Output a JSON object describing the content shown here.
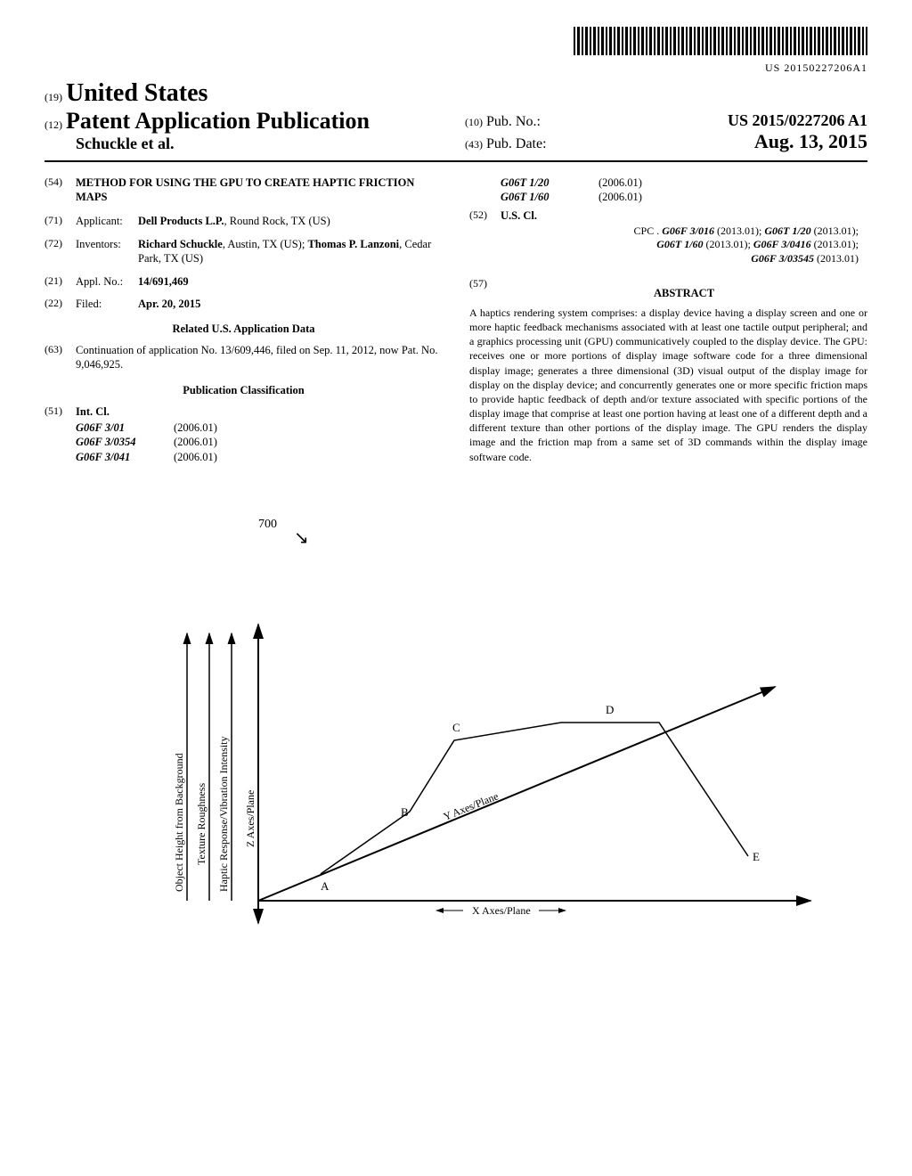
{
  "barcode_text": "US 20150227206A1",
  "header": {
    "country_prefix": "(19)",
    "country": "United States",
    "pub_type_prefix": "(12)",
    "pub_type": "Patent Application Publication",
    "authors": "Schuckle et al.",
    "pub_no_prefix": "(10)",
    "pub_no_label": "Pub. No.:",
    "pub_no": "US 2015/0227206 A1",
    "pub_date_prefix": "(43)",
    "pub_date_label": "Pub. Date:",
    "pub_date": "Aug. 13, 2015"
  },
  "left_col": {
    "title_num": "(54)",
    "title": "METHOD FOR USING THE GPU TO CREATE HAPTIC FRICTION MAPS",
    "applicant_num": "(71)",
    "applicant_label": "Applicant:",
    "applicant": "Dell Products L.P.",
    "applicant_loc": ", Round Rock, TX (US)",
    "inventors_num": "(72)",
    "inventors_label": "Inventors:",
    "inventor1": "Richard Schuckle",
    "inventor1_loc": ", Austin, TX (US);",
    "inventor2": "Thomas P. Lanzoni",
    "inventor2_loc": ", Cedar Park, TX (US)",
    "appl_num": "(21)",
    "appl_label": "Appl. No.:",
    "appl_val": "14/691,469",
    "filed_num": "(22)",
    "filed_label": "Filed:",
    "filed_val": "Apr. 20, 2015",
    "related_header": "Related U.S. Application Data",
    "continuation_num": "(63)",
    "continuation": "Continuation of application No. 13/609,446, filed on Sep. 11, 2012, now Pat. No. 9,046,925.",
    "classification_header": "Publication Classification",
    "intcl_num": "(51)",
    "intcl_label": "Int. Cl.",
    "intcl": [
      {
        "code": "G06F 3/01",
        "ver": "(2006.01)"
      },
      {
        "code": "G06F 3/0354",
        "ver": "(2006.01)"
      },
      {
        "code": "G06F 3/041",
        "ver": "(2006.01)"
      }
    ]
  },
  "right_col": {
    "intcl_cont": [
      {
        "code": "G06T 1/20",
        "ver": "(2006.01)"
      },
      {
        "code": "G06T 1/60",
        "ver": "(2006.01)"
      }
    ],
    "uscl_num": "(52)",
    "uscl_label": "U.S. Cl.",
    "cpc_prefix": "CPC .",
    "cpc_lines": [
      [
        {
          "b": "G06F 3/016",
          "t": " (2013.01); "
        },
        {
          "b": "G06T 1/20",
          "t": " (2013.01);"
        }
      ],
      [
        {
          "b": "G06T 1/60",
          "t": " (2013.01); "
        },
        {
          "b": "G06F 3/0416",
          "t": " (2013.01);"
        }
      ],
      [
        {
          "b": "G06F 3/03545",
          "t": " (2013.01)"
        }
      ]
    ],
    "abstract_num": "(57)",
    "abstract_label": "ABSTRACT",
    "abstract": "A haptics rendering system comprises: a display device having a display screen and one or more haptic feedback mechanisms associated with at least one tactile output peripheral; and a graphics processing unit (GPU) communicatively coupled to the display device. The GPU: receives one or more portions of display image software code for a three dimensional display image; generates a three dimensional (3D) visual output of the display image for display on the display device; and concurrently generates one or more specific friction maps to provide haptic feedback of depth and/or texture associated with specific portions of the display image that comprise at least one portion having at least one of a different depth and a different texture than other portions of the display image. The GPU renders the display image and the friction map from a same set of 3D commands within the display image software code."
  },
  "figure": {
    "ref_num": "700",
    "y_labels": [
      "Object Height from Background",
      "Texture Roughness",
      "Haptic Response/Vibration Intensity",
      "Z Axes/Plane"
    ],
    "x_label": "X Axes/Plane",
    "diag_label": "Y Axes/Plane",
    "points": [
      "A",
      "B",
      "C",
      "D",
      "E"
    ],
    "colors": {
      "stroke": "#000000",
      "bg": "#ffffff"
    },
    "line_width": 1.5,
    "font_size": 12
  }
}
